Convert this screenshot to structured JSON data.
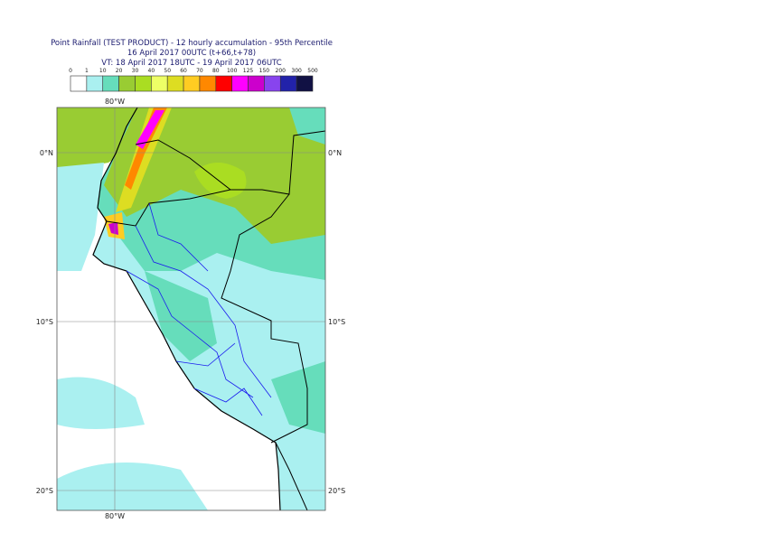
{
  "title": [
    "Point Rainfall (TEST PRODUCT) - 12 hourly accumulation - 95th Percentile",
    "16 April 2017 00UTC (t+66,t+78)",
    "VT: 18 April 2017 18UTC - 19 April 2017 06UTC"
  ],
  "legend": {
    "levels": [
      0,
      1,
      10,
      20,
      30,
      40,
      50,
      60,
      70,
      80,
      100,
      125,
      150,
      200,
      300,
      500
    ],
    "colors": [
      "#ffffff",
      "#aaf0f0",
      "#66ddbb",
      "#99cc33",
      "#aadd22",
      "#eeff66",
      "#dddd22",
      "#ffcc22",
      "#ff8800",
      "#ff0000",
      "#ff00ff",
      "#cc00cc",
      "#8844ee",
      "#2222aa",
      "#111144"
    ]
  },
  "map": {
    "lon_labels": [
      "80°W"
    ],
    "lat_labels": [
      "0°N",
      "10°S",
      "20°S"
    ]
  }
}
